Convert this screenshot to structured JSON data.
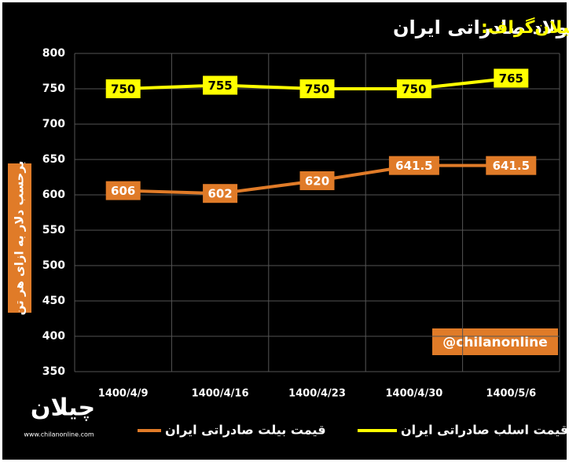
{
  "brand": "چیلان‌گراف:",
  "logo": {
    "name": "چیلان",
    "url": "www.chilanonline.com"
  },
  "watermark": "@chilanonline",
  "chart_data": {
    "type": "line",
    "title": "روند قیمت فولاد صادراتی ایران",
    "y_label": "برحسب دلار به ازای هر تن",
    "categories": [
      "1400/4/9",
      "1400/4/16",
      "1400/4/23",
      "1400/4/30",
      "1400/5/6"
    ],
    "series": [
      {
        "name": "قیمت اسلب صادراتی ایران",
        "color": "#ffff00",
        "values": [
          750,
          755,
          750,
          750,
          765
        ]
      },
      {
        "name": "قیمت بیلت صادراتی ایران",
        "color": "#e07b28",
        "values": [
          606,
          602,
          620,
          641.5,
          641.5
        ]
      }
    ],
    "ylim": [
      350,
      800
    ],
    "yticks": [
      350,
      400,
      450,
      500,
      550,
      600,
      650,
      700,
      750,
      800
    ],
    "grid": true
  }
}
